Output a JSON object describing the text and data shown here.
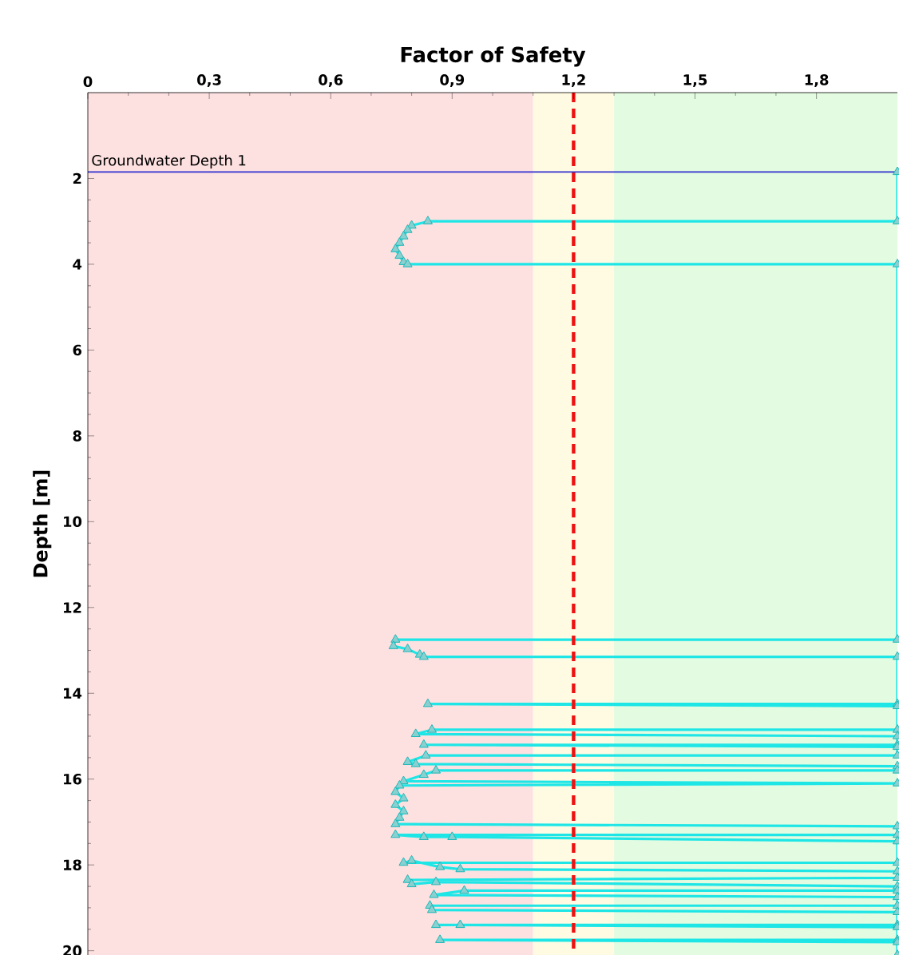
{
  "chart_data": {
    "type": "line",
    "xlabel": "Factor of Safety",
    "ylabel": "Depth [m]",
    "xlim": [
      0,
      2
    ],
    "ylim": [
      20.1,
      0
    ],
    "xticks": [
      0,
      {
        "value": 0.3,
        "label": "0,3"
      },
      {
        "value": 0.6,
        "label": "0,6"
      },
      {
        "value": 0.9,
        "label": "0,9"
      },
      {
        "value": 1.2,
        "label": "1,2"
      },
      {
        "value": 1.5,
        "label": "1,5"
      },
      {
        "value": 1.8,
        "label": "1,8"
      }
    ],
    "yticks": [
      2,
      4,
      6,
      8,
      10,
      12,
      14,
      16,
      18,
      20
    ],
    "marker": "triangle",
    "bands": [
      {
        "axis": "x",
        "from": 0,
        "to": 1.1,
        "color": "#fde0e0"
      },
      {
        "axis": "x",
        "from": 1.1,
        "to": 1.3,
        "color": "#fffbe3"
      },
      {
        "axis": "x",
        "from": 1.3,
        "to": 2,
        "color": "#e3fbe0"
      }
    ],
    "ref_lines": [
      {
        "axis": "x",
        "value": 1.2,
        "color": "#ee1111",
        "line_style": "dashed"
      },
      {
        "axis": "y",
        "value": 1.85,
        "label": "Groundwater Depth 1",
        "color": "#3030d0",
        "line_style": "solid"
      }
    ],
    "series": [
      {
        "color": "#1ee6e6",
        "x": [
          2,
          2,
          0.84,
          0.8,
          0.79,
          0.78,
          0.77,
          0.76,
          0.77,
          0.78,
          0.79,
          2,
          2,
          0.76,
          0.755,
          0.79,
          0.82,
          0.83,
          2,
          2,
          0.84,
          2,
          2,
          0.85,
          0.81,
          2,
          2,
          0.83,
          2,
          2,
          0.835,
          0.79,
          0.81,
          2,
          2,
          0.86,
          0.83,
          0.78,
          2,
          0.77,
          0.76,
          0.78,
          0.76,
          0.78,
          0.77,
          0.76,
          2,
          2,
          0.76,
          0.83,
          0.9,
          2,
          2,
          0.78,
          0.8,
          0.87,
          0.92,
          2,
          2,
          0.79,
          0.8,
          0.86,
          2,
          2,
          0.93,
          0.855,
          2,
          2,
          0.845,
          0.85,
          2,
          2,
          0.86,
          0.92,
          2,
          2,
          0.87,
          2,
          2
        ],
        "values": [
          1.85,
          3.0,
          3.0,
          3.1,
          3.2,
          3.35,
          3.5,
          3.65,
          3.8,
          3.95,
          4.0,
          4.0,
          12.75,
          12.75,
          12.9,
          12.97,
          13.1,
          13.15,
          13.15,
          14.25,
          14.25,
          14.3,
          14.85,
          14.85,
          14.95,
          15.0,
          15.2,
          15.2,
          15.25,
          15.45,
          15.45,
          15.6,
          15.65,
          15.7,
          15.8,
          15.8,
          15.9,
          16.05,
          16.1,
          16.15,
          16.3,
          16.45,
          16.6,
          16.75,
          16.9,
          17.05,
          17.1,
          17.3,
          17.3,
          17.35,
          17.35,
          17.45,
          17.95,
          17.95,
          17.9,
          18.05,
          18.1,
          18.15,
          18.3,
          18.35,
          18.45,
          18.4,
          18.5,
          18.6,
          18.6,
          18.7,
          18.75,
          18.95,
          18.95,
          19.05,
          19.1,
          19.4,
          19.4,
          19.4,
          19.45,
          19.75,
          19.75,
          19.8,
          20.1
        ]
      }
    ]
  }
}
